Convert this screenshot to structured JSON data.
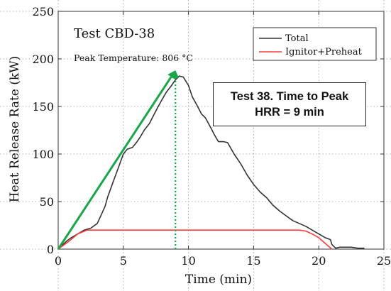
{
  "chart_data": {
    "type": "line",
    "title": "Test CBD-38",
    "subtitle": "Peak Temperature: 806 °C",
    "xlabel": "Time (min)",
    "ylabel": "Heat Release Rate (kW)",
    "xlim": [
      0,
      25
    ],
    "ylim": [
      0,
      250
    ],
    "x_ticks": [
      "0",
      "5",
      "10",
      "15",
      "20",
      "25"
    ],
    "y_ticks": [
      "0",
      "50",
      "100",
      "150",
      "200",
      "250"
    ],
    "grid": true,
    "legend_position": "top-right",
    "series": [
      {
        "name": "Total",
        "color": "#333333",
        "x": [
          0,
          0.3,
          0.7,
          1.0,
          1.5,
          2.0,
          2.5,
          3.0,
          3.3,
          3.6,
          3.8,
          4.2,
          4.6,
          5.0,
          5.3,
          5.7,
          6.0,
          6.3,
          6.6,
          7.0,
          7.3,
          7.6,
          8.0,
          8.3,
          8.7,
          9.0,
          9.3,
          9.6,
          10.0,
          10.3,
          10.7,
          11.0,
          11.3,
          11.7,
          12.0,
          12.3,
          12.7,
          13.0,
          13.5,
          14.0,
          14.5,
          15.0,
          15.5,
          16.0,
          16.5,
          17.0,
          17.5,
          18.0,
          18.5,
          19.0,
          19.5,
          20.0,
          20.5,
          20.9,
          21.0,
          21.3,
          21.6,
          22.0,
          22.5,
          23.0,
          23.5
        ],
        "y": [
          0,
          4,
          9,
          12,
          16,
          20,
          22,
          27,
          36,
          45,
          55,
          70,
          85,
          100,
          105,
          107,
          112,
          118,
          125,
          132,
          140,
          148,
          158,
          165,
          172,
          178,
          182,
          181,
          172,
          160,
          150,
          142,
          138,
          128,
          120,
          113,
          113,
          112,
          100,
          90,
          78,
          68,
          60,
          54,
          46,
          40,
          35,
          30,
          27,
          24,
          20,
          16,
          12,
          10,
          5,
          1,
          2,
          2,
          2,
          1,
          1
        ]
      },
      {
        "name": "Ignitor+Preheat",
        "color": "#ff3b3b",
        "x": [
          0,
          0.8,
          1.5,
          2.2,
          18.5,
          19.0,
          19.5,
          20.0,
          20.5,
          21.0
        ],
        "y": [
          0,
          8,
          16,
          20,
          20,
          19,
          16,
          12,
          6,
          0
        ]
      }
    ],
    "annotations": {
      "callout_line1": "Test 38.  Time to Peak",
      "callout_line2": "HRR = 9 min",
      "green_arrow": {
        "from": [
          0,
          0
        ],
        "to": [
          9,
          188
        ],
        "color": "#1aa64a"
      },
      "peak_marker": {
        "x": 9,
        "y_top": 188,
        "color": "#1aa64a"
      }
    }
  }
}
